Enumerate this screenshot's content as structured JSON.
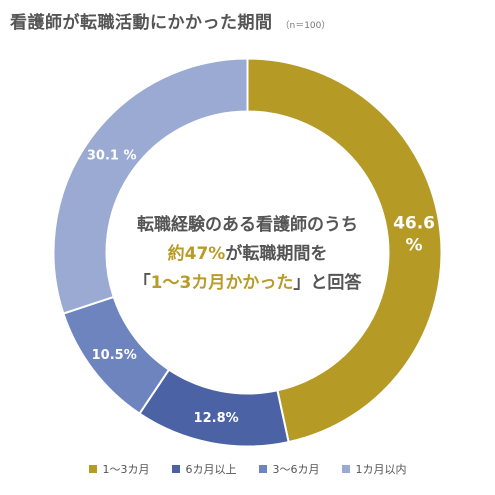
{
  "title": "看護師が転職活動にかかった期間",
  "subtitle": "（n＝100）",
  "center": {
    "line1": "転職経験のある看護師のうち",
    "line2_highlight": "約47%",
    "line2_rest": "が転職期間を",
    "line3_open": "「",
    "line3_highlight": "1〜3カ月かかった",
    "line3_close": "」と回答"
  },
  "chart_data": {
    "type": "pie",
    "donut": true,
    "categories": [
      "1〜3カ月",
      "6カ月以上",
      "3〜6カ月",
      "1カ月以内"
    ],
    "values": [
      46.6,
      12.8,
      10.5,
      30.1
    ],
    "labels": [
      "46.6 %",
      "12.8%",
      "10.5%",
      "30.1 %"
    ],
    "colors": [
      "#b59b26",
      "#4b62a4",
      "#6d84bf",
      "#9aaad3"
    ],
    "legend_position": "bottom"
  }
}
